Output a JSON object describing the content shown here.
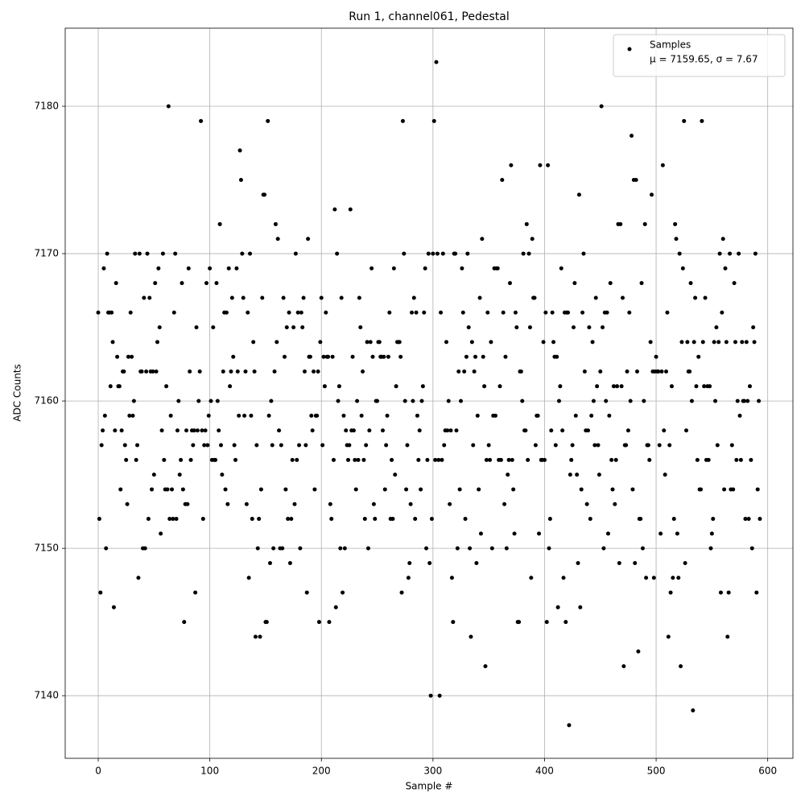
{
  "chart_data": {
    "type": "scatter",
    "title": "Run 1, channel061, Pedestal",
    "xlabel": "Sample #",
    "ylabel": "ADC Counts",
    "xlim": [
      -29.6,
      622.6
    ],
    "ylim": [
      7135.75,
      7185.3
    ],
    "xticks": [
      0,
      100,
      200,
      300,
      400,
      500,
      600
    ],
    "yticks": [
      7140,
      7150,
      7160,
      7170,
      7180
    ],
    "grid": true,
    "legend": "upper right",
    "legend_note": "μ = 7159.65, σ = 7.67",
    "series": [
      {
        "name": "Samples",
        "color": "#000000",
        "x": [
          0,
          1,
          2,
          3,
          4,
          5,
          6,
          7,
          8,
          9,
          10,
          11,
          12,
          13,
          14,
          15,
          16,
          17,
          18,
          19,
          20,
          21,
          22,
          23,
          24,
          25,
          26,
          27,
          28,
          29,
          30,
          31,
          32,
          33,
          34,
          35,
          36,
          37,
          38,
          39,
          40,
          41,
          42,
          43,
          44,
          45,
          46,
          47,
          48,
          49,
          50,
          51,
          52,
          53,
          54,
          55,
          56,
          57,
          58,
          59,
          60,
          61,
          62,
          63,
          64,
          65,
          66,
          67,
          68,
          69,
          70,
          71,
          72,
          73,
          74,
          75,
          76,
          77,
          78,
          79,
          80,
          81,
          82,
          83,
          84,
          85,
          86,
          87,
          88,
          89,
          90,
          91,
          92,
          93,
          94,
          95,
          96,
          97,
          98,
          99,
          100,
          101,
          102,
          103,
          104,
          105,
          106,
          107,
          108,
          109,
          110,
          111,
          112,
          113,
          114,
          115,
          116,
          117,
          118,
          119,
          120,
          121,
          122,
          123,
          124,
          125,
          126,
          127,
          128,
          129,
          130,
          131,
          132,
          133,
          134,
          135,
          136,
          137,
          138,
          139,
          140,
          141,
          142,
          143,
          144,
          145,
          146,
          147,
          148,
          149,
          150,
          151,
          152,
          153,
          154,
          155,
          156,
          157,
          158,
          159,
          160,
          161,
          162,
          163,
          164,
          165,
          166,
          167,
          168,
          169,
          170,
          171,
          172,
          173,
          174,
          175,
          176,
          177,
          178,
          179,
          180,
          181,
          182,
          183,
          184,
          185,
          186,
          187,
          188,
          189,
          190,
          191,
          192,
          193,
          194,
          195,
          196,
          197,
          198,
          199,
          200,
          201,
          202,
          203,
          204,
          205,
          206,
          207,
          208,
          209,
          210,
          211,
          212,
          213,
          214,
          215,
          216,
          217,
          218,
          219,
          220,
          221,
          222,
          223,
          224,
          225,
          226,
          227,
          228,
          229,
          230,
          231,
          232,
          233,
          234,
          235,
          236,
          237,
          238,
          239,
          240,
          241,
          242,
          243,
          244,
          245,
          246,
          247,
          248,
          249,
          250,
          251,
          252,
          253,
          254,
          255,
          256,
          257,
          258,
          259,
          260,
          261,
          262,
          263,
          264,
          265,
          266,
          267,
          268,
          269,
          270,
          271,
          272,
          273,
          274,
          275,
          276,
          277,
          278,
          279,
          280,
          281,
          282,
          283,
          284,
          285,
          286,
          287,
          288,
          289,
          290,
          291,
          292,
          293,
          294,
          295,
          296,
          297,
          298,
          299,
          300,
          301,
          302,
          303,
          304,
          305,
          306,
          307,
          308,
          309,
          310,
          311,
          312,
          313,
          314,
          315,
          316,
          317,
          318,
          319,
          320,
          321,
          322,
          323,
          324,
          325,
          326,
          327,
          328,
          329,
          330,
          331,
          332,
          333,
          334,
          335,
          336,
          337,
          338,
          339,
          340,
          341,
          342,
          343,
          344,
          345,
          346,
          347,
          348,
          349,
          350,
          351,
          352,
          353,
          354,
          355,
          356,
          357,
          358,
          359,
          360,
          361,
          362,
          363,
          364,
          365,
          366,
          367,
          368,
          369,
          370,
          371,
          372,
          373,
          374,
          375,
          376,
          377,
          378,
          379,
          380,
          381,
          382,
          383,
          384,
          385,
          386,
          387,
          388,
          389,
          390,
          391,
          392,
          393,
          394,
          395,
          396,
          397,
          398,
          399,
          400,
          401,
          402,
          403,
          404,
          405,
          406,
          407,
          408,
          409,
          410,
          411,
          412,
          413,
          414,
          415,
          416,
          417,
          418,
          419,
          420,
          421,
          422,
          423,
          424,
          425,
          426,
          427,
          428,
          429,
          430,
          431,
          432,
          433,
          434,
          435,
          436,
          437,
          438,
          439,
          440,
          441,
          442,
          443,
          444,
          445,
          446,
          447,
          448,
          449,
          450,
          451,
          452,
          453,
          454,
          455,
          456,
          457,
          458,
          459,
          460,
          461,
          462,
          463,
          464,
          465,
          466,
          467,
          468,
          469,
          470,
          471,
          472,
          473,
          474,
          475,
          476,
          477,
          478,
          479,
          480,
          481,
          482,
          483,
          484,
          485,
          486,
          487,
          488,
          489,
          490,
          491,
          492,
          493,
          494,
          495,
          496,
          497,
          498,
          499,
          500,
          501,
          502,
          503,
          504,
          505,
          506,
          507,
          508,
          509,
          510,
          511,
          512,
          513,
          514,
          515,
          516,
          517,
          518,
          519,
          520,
          521,
          522,
          523,
          524,
          525,
          526,
          527,
          528,
          529,
          530,
          531,
          532,
          533,
          534,
          535,
          536,
          537,
          538,
          539,
          540,
          541,
          542,
          543,
          544,
          545,
          546,
          547,
          548,
          549,
          550,
          551,
          552,
          553,
          554,
          555,
          556,
          557,
          558,
          559,
          560,
          561,
          562,
          563,
          564,
          565,
          566,
          567,
          568,
          569,
          570,
          571,
          572,
          573,
          574,
          575,
          576,
          577,
          578,
          579,
          580,
          581,
          582,
          583,
          584,
          585,
          586,
          587,
          588,
          589,
          590,
          591,
          592,
          593
        ],
        "values": [
          7166,
          7152,
          7147,
          7157,
          7158,
          7169,
          7159,
          7150,
          7170,
          7166,
          7166,
          7161,
          7166,
          7164,
          7146,
          7158,
          7168,
          7163,
          7161,
          7161,
          7154,
          7158,
          7162,
          7162,
          7157,
          7156,
          7153,
          7163,
          7159,
          7166,
          7163,
          7159,
          7160,
          7170,
          7156,
          7157,
          7148,
          7170,
          7162,
          7162,
          7150,
          7167,
          7150,
          7162,
          7170,
          7152,
          7167,
          7162,
          7154,
          7162,
          7155,
          7168,
          7162,
          7164,
          7169,
          7165,
          7151,
          7158,
          7170,
          7156,
          7154,
          7161,
          7154,
          7180,
          7152,
          7159,
          7154,
          7152,
          7166,
          7170,
          7152,
          7158,
          7160,
          7155,
          7156,
          7168,
          7154,
          7145,
          7153,
          7158,
          7153,
          7169,
          7162,
          7156,
          7158,
          7157,
          7158,
          7147,
          7165,
          7158,
          7160,
          7162,
          7179,
          7158,
          7152,
          7157,
          7158,
          7168,
          7157,
          7159,
          7169,
          7160,
          7156,
          7165,
          7156,
          7156,
          7168,
          7160,
          7158,
          7172,
          7157,
          7155,
          7162,
          7166,
          7154,
          7166,
          7153,
          7169,
          7161,
          7162,
          7167,
          7163,
          7157,
          7156,
          7169,
          7162,
          7159,
          7177,
          7175,
          7170,
          7167,
          7159,
          7162,
          7153,
          7166,
          7148,
          7170,
          7159,
          7152,
          7164,
          7162,
          7144,
          7157,
          7150,
          7152,
          7144,
          7154,
          7167,
          7174,
          7174,
          7145,
          7145,
          7179,
          7159,
          7149,
          7160,
          7157,
          7150,
          7162,
          7172,
          7164,
          7171,
          7158,
          7150,
          7157,
          7150,
          7167,
          7163,
          7154,
          7165,
          7152,
          7166,
          7149,
          7152,
          7156,
          7165,
          7153,
          7170,
          7156,
          7166,
          7157,
          7150,
          7166,
          7165,
          7167,
          7162,
          7157,
          7147,
          7171,
          7163,
          7163,
          7159,
          7158,
          7162,
          7154,
          7159,
          7159,
          7162,
          7145,
          7164,
          7167,
          7157,
          7163,
          7161,
          7166,
          7163,
          7163,
          7145,
          7153,
          7152,
          7163,
          7156,
          7173,
          7146,
          7170,
          7160,
          7161,
          7150,
          7167,
          7147,
          7159,
          7150,
          7158,
          7157,
          7156,
          7157,
          7173,
          7158,
          7163,
          7158,
          7156,
          7154,
          7160,
          7156,
          7167,
          7165,
          7159,
          7162,
          7156,
          7152,
          7157,
          7164,
          7150,
          7158,
          7164,
          7169,
          7163,
          7153,
          7152,
          7160,
          7160,
          7164,
          7164,
          7163,
          7163,
          7158,
          7163,
          7154,
          7157,
          7159,
          7163,
          7166,
          7152,
          7156,
          7152,
          7169,
          7155,
          7161,
          7164,
          7164,
          7164,
          7163,
          7147,
          7179,
          7170,
          7160,
          7154,
          7157,
          7148,
          7149,
          7153,
          7166,
          7160,
          7167,
          7152,
          7166,
          7159,
          7156,
          7158,
          7154,
          7160,
          7161,
          7166,
          7169,
          7150,
          7156,
          7170,
          7149,
          7140,
          7152,
          7170,
          7179,
          7156,
          7183,
          7170,
          7156,
          7140,
          7166,
          7156,
          7170,
          7157,
          7158,
          7164,
          7158,
          7160,
          7153,
          7158,
          7148,
          7145,
          7170,
          7170,
          7158,
          7150,
          7162,
          7154,
          7160,
          7169,
          7166,
          7162,
          7152,
          7163,
          7170,
          7165,
          7150,
          7144,
          7164,
          7157,
          7162,
          7163,
          7149,
          7159,
          7154,
          7167,
          7151,
          7171,
          7163,
          7161,
          7142,
          7156,
          7166,
          7157,
          7156,
          7164,
          7150,
          7159,
          7169,
          7159,
          7169,
          7169,
          7156,
          7161,
          7156,
          7175,
          7166,
          7153,
          7163,
          7150,
          7155,
          7156,
          7168,
          7176,
          7156,
          7154,
          7151,
          7166,
          7165,
          7145,
          7145,
          7162,
          7162,
          7160,
          7170,
          7158,
          7158,
          7172,
          7156,
          7170,
          7165,
          7148,
          7171,
          7167,
          7167,
          7157,
          7159,
          7159,
          7151,
          7176,
          7156,
          7156,
          7164,
          7156,
          7166,
          7145,
          7176,
          7150,
          7152,
          7158,
          7166,
          7164,
          7163,
          7157,
          7163,
          7146,
          7160,
          7161,
          7169,
          7158,
          7148,
          7166,
          7145,
          7166,
          7166,
          7138,
          7155,
          7156,
          7157,
          7165,
          7168,
          7159,
          7155,
          7149,
          7174,
          7146,
          7154,
          7166,
          7170,
          7162,
          7158,
          7153,
          7158,
          7165,
          7152,
          7159,
          7164,
          7160,
          7157,
          7167,
          7161,
          7157,
          7155,
          7162,
          7180,
          7165,
          7150,
          7166,
          7160,
          7166,
          7151,
          7159,
          7168,
          7156,
          7154,
          7161,
          7153,
          7156,
          7161,
          7172,
          7149,
          7172,
          7161,
          7167,
          7142,
          7157,
          7157,
          7162,
          7158,
          7166,
          7160,
          7178,
          7154,
          7175,
          7149,
          7175,
          7162,
          7143,
          7152,
          7152,
          7168,
          7150,
          7160,
          7172,
          7148,
          7157,
          7157,
          7156,
          7164,
          7174,
          7162,
          7148,
          7162,
          7163,
          7162,
          7162,
          7157,
          7151,
          7162,
          7176,
          7158,
          7155,
          7162,
          7166,
          7144,
          7157,
          7147,
          7161,
          7148,
          7152,
          7172,
          7171,
          7151,
          7148,
          7170,
          7142,
          7164,
          7169,
          7179,
          7149,
          7158,
          7164,
          7162,
          7162,
          7168,
          7160,
          7139,
          7164,
          7167,
          7161,
          7156,
          7163,
          7154,
          7154,
          7179,
          7164,
          7161,
          7167,
          7156,
          7161,
          7156,
          7161,
          7150,
          7151,
          7152,
          7164,
          7160,
          7165,
          7157,
          7164,
          7170,
          7147,
          7166,
          7171,
          7154,
          7169,
          7164,
          7144,
          7147,
          7170,
          7154,
          7157,
          7154,
          7168,
          7164,
          7156,
          7160,
          7170,
          7159,
          7156,
          7164,
          7160,
          7160,
          7152,
          7164,
          7160,
          7152,
          7161,
          7156,
          7150,
          7165,
          7164,
          7170,
          7147,
          7154,
          7160,
          7152
        ]
      }
    ]
  }
}
